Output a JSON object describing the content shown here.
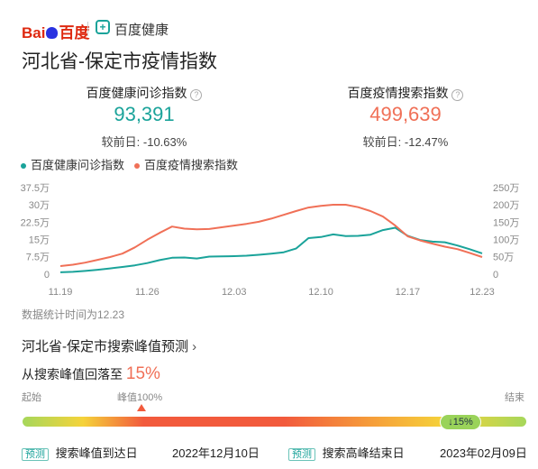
{
  "header": {
    "logo_left": "Bai",
    "logo_right": "百度",
    "brand": "百度健康"
  },
  "title": "河北省-保定市疫情指数",
  "stats": [
    {
      "label": "百度健康问诊指数",
      "value": "93,391",
      "change": "较前日: -10.63%"
    },
    {
      "label": "百度疫情搜索指数",
      "value": "499,639",
      "change": "较前日: -12.47%"
    }
  ],
  "chart_data": {
    "type": "line",
    "categories": [
      "11.19",
      null,
      null,
      null,
      null,
      null,
      null,
      "11.26",
      null,
      null,
      null,
      null,
      null,
      null,
      "12.03",
      null,
      null,
      null,
      null,
      null,
      null,
      "12.10",
      null,
      null,
      null,
      null,
      null,
      null,
      "12.17",
      null,
      null,
      null,
      null,
      null,
      "12.23"
    ],
    "series": [
      {
        "name": "百度健康问诊指数",
        "color": "#1aa39a",
        "axis": "y",
        "values": [
          12000,
          14000,
          18000,
          23000,
          29000,
          35000,
          42000,
          52000,
          65000,
          75000,
          76000,
          72000,
          80000,
          81000,
          82000,
          84000,
          88000,
          93000,
          99000,
          115000,
          160000,
          165000,
          176000,
          169000,
          170000,
          175000,
          195000,
          205000,
          170000,
          152000,
          145000,
          142000,
          128000,
          112000,
          94000
        ]
      },
      {
        "name": "百度疫情搜索指数",
        "color": "#f07057",
        "axis": "y2",
        "values": [
          260000,
          300000,
          360000,
          440000,
          520000,
          620000,
          800000,
          1020000,
          1220000,
          1400000,
          1340000,
          1320000,
          1330000,
          1380000,
          1430000,
          1480000,
          1540000,
          1630000,
          1740000,
          1850000,
          1950000,
          2000000,
          2030000,
          2030000,
          1960000,
          1850000,
          1690000,
          1430000,
          1120000,
          1000000,
          910000,
          820000,
          750000,
          640000,
          520000
        ]
      }
    ],
    "ylim": [
      0,
      375000
    ],
    "yticks": [
      0,
      {
        "value": 75000,
        "label": "7.5万"
      },
      {
        "value": 150000,
        "label": "15万"
      },
      {
        "value": 225000,
        "label": "22.5万"
      },
      {
        "value": 300000,
        "label": "30万"
      },
      {
        "value": 375000,
        "label": "37.5万"
      }
    ],
    "y2lim": [
      0,
      2500000
    ],
    "y2ticks": [
      0,
      {
        "value": 500000,
        "label": "50万"
      },
      {
        "value": 1000000,
        "label": "100万"
      },
      {
        "value": 1500000,
        "label": "150万"
      },
      {
        "value": 2000000,
        "label": "200万"
      },
      {
        "value": 2500000,
        "label": "250万"
      }
    ],
    "grid": false,
    "legend": "top-left"
  },
  "footnote": "数据统计时间为12.23",
  "prediction": {
    "title": "河北省-保定市搜索峰值预测",
    "drop_text": "从搜索峰值回落至",
    "drop_value": "15%",
    "start": "起始",
    "peak": "峰值100%",
    "end": "结束",
    "current": "15%",
    "items": [
      {
        "tag": "预测",
        "label": "搜索峰值到达日",
        "date": "2022年12月10日"
      },
      {
        "tag": "预测",
        "label": "搜索高峰结束日",
        "date": "2023年02月09日"
      }
    ]
  }
}
